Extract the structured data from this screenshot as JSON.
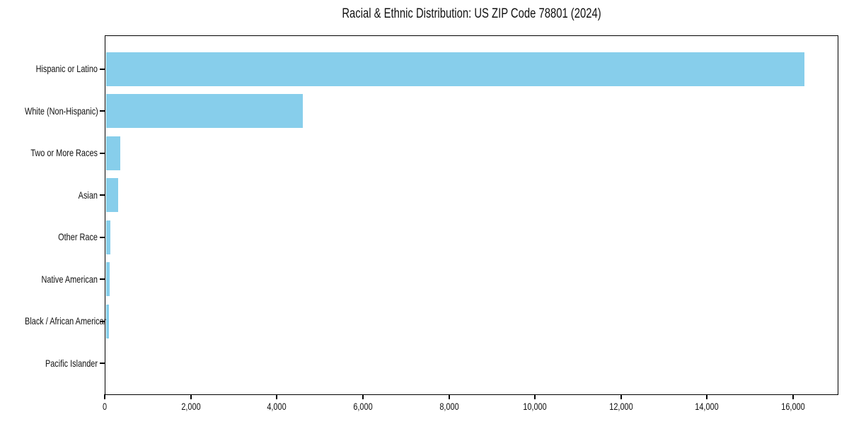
{
  "figure": {
    "background": "#ffffff"
  },
  "chart_data": {
    "type": "bar",
    "orientation": "horizontal",
    "title": "Racial & Ethnic Distribution: US ZIP Code 78801 (2024)",
    "categories": [
      "Hispanic or Latino",
      "White (Non-Hispanic)",
      "Two or More Races",
      "Asian",
      "Other Race",
      "Native American",
      "Black / African American",
      "Pacific Islander"
    ],
    "values": [
      16240,
      4575,
      335,
      290,
      110,
      85,
      70,
      0
    ],
    "xlabel": "",
    "ylabel": "",
    "xlim": [
      0,
      17050
    ],
    "xticks": [
      0,
      2000,
      4000,
      6000,
      8000,
      10000,
      12000,
      14000,
      16000
    ],
    "xtick_labels": [
      "0",
      "2,000",
      "4,000",
      "6,000",
      "8,000",
      "10,000",
      "12,000",
      "14,000",
      "16,000"
    ],
    "grid": false,
    "legend": false,
    "bar_color": "#87ceeb",
    "axis_color": "#000000",
    "text_color": "#111111"
  }
}
